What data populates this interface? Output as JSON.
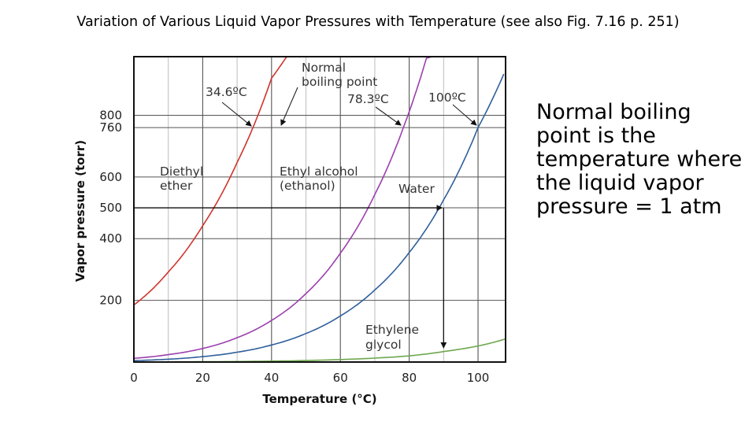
{
  "slide": {
    "title": "Variation of  Various Liquid Vapor Pressures with Temperature (see also Fig. 7.16 p. 251)",
    "side_note": "Normal boiling point is the temperature where the liquid vapor pressure = 1 atm"
  },
  "chart_data": {
    "type": "line",
    "title": "",
    "xlabel": "Temperature (°C)",
    "ylabel": "Vapor pressure (torr)",
    "xlim": [
      0,
      108
    ],
    "ylim": [
      0,
      990
    ],
    "x_ticks": [
      "0",
      "20",
      "40",
      "60",
      "80",
      "100"
    ],
    "y_ticks": [
      "200",
      "400",
      "500",
      "600",
      "760",
      "800"
    ],
    "y_tick_values": [
      200,
      400,
      500,
      600,
      760,
      800
    ],
    "grid": true,
    "series": [
      {
        "name": "Diethyl ether",
        "color": "#d0342c",
        "label": "Diethyl ether",
        "x": [
          0,
          10,
          20,
          30,
          34.6,
          40,
          45
        ],
        "y": [
          185,
          292,
          442,
          647,
          760,
          920,
          1000
        ]
      },
      {
        "name": "Ethyl alcohol (ethanol)",
        "color": "#9b3fae",
        "label": "Ethyl alcohol (ethanol)",
        "x": [
          0,
          10,
          20,
          30,
          40,
          50,
          60,
          70,
          78.3,
          85,
          90
        ],
        "y": [
          12,
          24,
          44,
          79,
          135,
          222,
          353,
          543,
          760,
          985,
          1000
        ]
      },
      {
        "name": "Water",
        "color": "#2f5f9b",
        "label": "Water",
        "x": [
          0,
          10,
          20,
          30,
          40,
          50,
          60,
          70,
          80,
          90,
          100,
          110
        ],
        "y": [
          4.6,
          9.2,
          17.5,
          31.8,
          55.3,
          92.5,
          149.4,
          233.7,
          355.1,
          525.8,
          760,
          1000
        ]
      },
      {
        "name": "Ethylene glycol",
        "color": "#6ea84e",
        "label": "Ethylene glycol",
        "x": [
          0,
          20,
          40,
          60,
          80,
          90,
          100,
          108
        ],
        "y": [
          0.3,
          1,
          3,
          8,
          20,
          34,
          52,
          75
        ]
      }
    ],
    "annotations": {
      "normal_boiling_point": "Normal boiling point",
      "ether_bp": "34.6ºC",
      "ethanol_bp": "78.3ºC",
      "water_bp": "100ºC",
      "example_pressure": 500,
      "example_temperature": 90
    }
  }
}
